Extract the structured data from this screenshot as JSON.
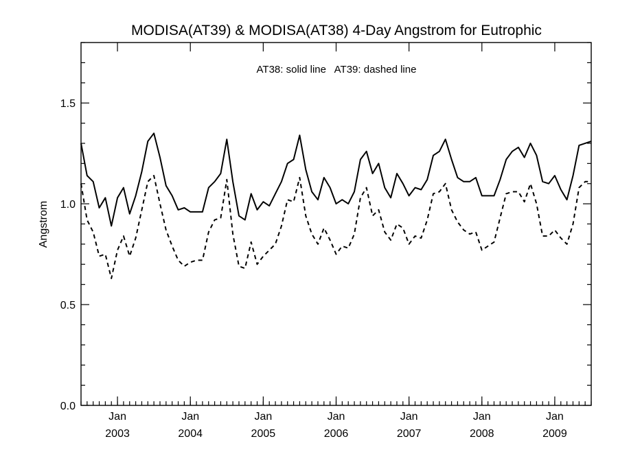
{
  "chart_data": {
    "type": "line",
    "title": "MODISA(AT39) & MODISA(AT38) 4-Day Angstrom for Eutrophic",
    "annotation": "AT38: solid line   AT39: dashed line",
    "xlabel": "",
    "ylabel": "Angstrom",
    "xlim": [
      "2002-07",
      "2009-07"
    ],
    "ylim": [
      0.0,
      1.8
    ],
    "yticks": [
      0.0,
      0.5,
      1.0,
      1.5
    ],
    "ytick_labels": [
      "0.0",
      "0.5",
      "1.0",
      "1.5"
    ],
    "xticks": [
      {
        "month_label": "Jan",
        "year_label": "2003",
        "date": "2003-01"
      },
      {
        "month_label": "Jan",
        "year_label": "2004",
        "date": "2004-01"
      },
      {
        "month_label": "Jan",
        "year_label": "2005",
        "date": "2005-01"
      },
      {
        "month_label": "Jan",
        "year_label": "2006",
        "date": "2006-01"
      },
      {
        "month_label": "Jan",
        "year_label": "2007",
        "date": "2007-01"
      },
      {
        "month_label": "Jan",
        "year_label": "2008",
        "date": "2008-01"
      },
      {
        "month_label": "Jan",
        "year_label": "2009",
        "date": "2009-01"
      }
    ],
    "x": [
      "2002-07",
      "2002-08",
      "2002-09",
      "2002-10",
      "2002-11",
      "2002-12",
      "2003-01",
      "2003-02",
      "2003-03",
      "2003-04",
      "2003-05",
      "2003-06",
      "2003-07",
      "2003-08",
      "2003-09",
      "2003-10",
      "2003-11",
      "2003-12",
      "2004-01",
      "2004-02",
      "2004-03",
      "2004-04",
      "2004-05",
      "2004-06",
      "2004-07",
      "2004-08",
      "2004-09",
      "2004-10",
      "2004-11",
      "2004-12",
      "2005-01",
      "2005-02",
      "2005-03",
      "2005-04",
      "2005-05",
      "2005-06",
      "2005-07",
      "2005-08",
      "2005-09",
      "2005-10",
      "2005-11",
      "2005-12",
      "2006-01",
      "2006-02",
      "2006-03",
      "2006-04",
      "2006-05",
      "2006-06",
      "2006-07",
      "2006-08",
      "2006-09",
      "2006-10",
      "2006-11",
      "2006-12",
      "2007-01",
      "2007-02",
      "2007-03",
      "2007-04",
      "2007-05",
      "2007-06",
      "2007-07",
      "2007-08",
      "2007-09",
      "2007-10",
      "2007-11",
      "2007-12",
      "2008-01",
      "2008-02",
      "2008-03",
      "2008-04",
      "2008-05",
      "2008-06",
      "2008-07",
      "2008-08",
      "2008-09",
      "2008-10",
      "2008-11",
      "2008-12",
      "2009-01",
      "2009-02",
      "2009-03",
      "2009-04",
      "2009-05",
      "2009-06",
      "2009-07"
    ],
    "series": [
      {
        "name": "AT38",
        "style": "solid",
        "color": "#000000",
        "values": [
          1.3,
          1.14,
          1.11,
          0.98,
          1.03,
          0.89,
          1.03,
          1.08,
          0.95,
          1.04,
          1.16,
          1.31,
          1.35,
          1.23,
          1.09,
          1.04,
          0.97,
          0.98,
          0.96,
          0.96,
          0.96,
          1.08,
          1.11,
          1.15,
          1.32,
          1.11,
          0.94,
          0.92,
          1.05,
          0.97,
          1.01,
          0.99,
          1.05,
          1.11,
          1.2,
          1.22,
          1.34,
          1.17,
          1.06,
          1.02,
          1.13,
          1.08,
          1.0,
          1.02,
          1.0,
          1.06,
          1.22,
          1.26,
          1.15,
          1.2,
          1.08,
          1.03,
          1.15,
          1.1,
          1.04,
          1.08,
          1.07,
          1.12,
          1.24,
          1.26,
          1.32,
          1.22,
          1.13,
          1.11,
          1.11,
          1.13,
          1.04,
          1.04,
          1.04,
          1.12,
          1.22,
          1.26,
          1.28,
          1.23,
          1.3,
          1.24,
          1.11,
          1.1,
          1.14,
          1.07,
          1.02,
          1.14,
          1.29,
          1.3,
          1.31
        ]
      },
      {
        "name": "AT39",
        "style": "dashed",
        "color": "#000000",
        "values": [
          1.1,
          0.92,
          0.86,
          0.74,
          0.75,
          0.63,
          0.77,
          0.84,
          0.74,
          0.83,
          0.97,
          1.11,
          1.14,
          1.0,
          0.87,
          0.79,
          0.72,
          0.69,
          0.71,
          0.72,
          0.72,
          0.86,
          0.92,
          0.93,
          1.12,
          0.85,
          0.69,
          0.68,
          0.81,
          0.7,
          0.74,
          0.77,
          0.8,
          0.89,
          1.02,
          1.01,
          1.13,
          0.94,
          0.85,
          0.8,
          0.88,
          0.82,
          0.75,
          0.79,
          0.78,
          0.85,
          1.03,
          1.08,
          0.94,
          0.97,
          0.86,
          0.82,
          0.9,
          0.88,
          0.8,
          0.84,
          0.83,
          0.92,
          1.05,
          1.06,
          1.1,
          0.97,
          0.91,
          0.87,
          0.85,
          0.86,
          0.77,
          0.79,
          0.81,
          0.93,
          1.05,
          1.06,
          1.06,
          1.01,
          1.1,
          1.0,
          0.84,
          0.84,
          0.87,
          0.83,
          0.8,
          0.9,
          1.08,
          1.11,
          1.11
        ]
      }
    ],
    "grid": false,
    "legend": "none"
  }
}
